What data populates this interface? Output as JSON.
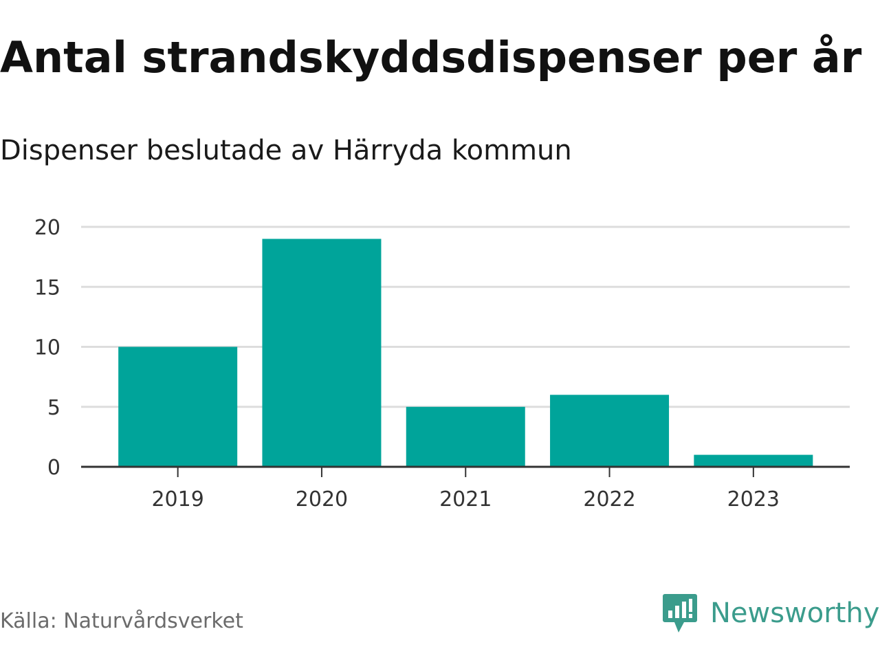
{
  "title": "Antal strandskyddsdispenser per år",
  "subtitle": "Dispenser beslutade av Härryda kommun",
  "source": "Källa: Naturvårdsverket",
  "brand": {
    "name": "Newsworthy",
    "icon": "newsworthy-logo-icon"
  },
  "colors": {
    "bar": "#00a49a",
    "grid": "#dddddd",
    "axis": "#333333",
    "brand": "#3b9c8c"
  },
  "chart_data": {
    "type": "bar",
    "title": "Antal strandskyddsdispenser per år",
    "subtitle": "Dispenser beslutade av Härryda kommun",
    "categories": [
      "2019",
      "2020",
      "2021",
      "2022",
      "2023"
    ],
    "values": [
      10,
      19,
      5,
      6,
      1
    ],
    "ylim": [
      0,
      20
    ],
    "yticks": [
      0,
      5,
      10,
      15,
      20
    ],
    "xlabel": "",
    "ylabel": "",
    "grid": true,
    "legend": "none"
  }
}
